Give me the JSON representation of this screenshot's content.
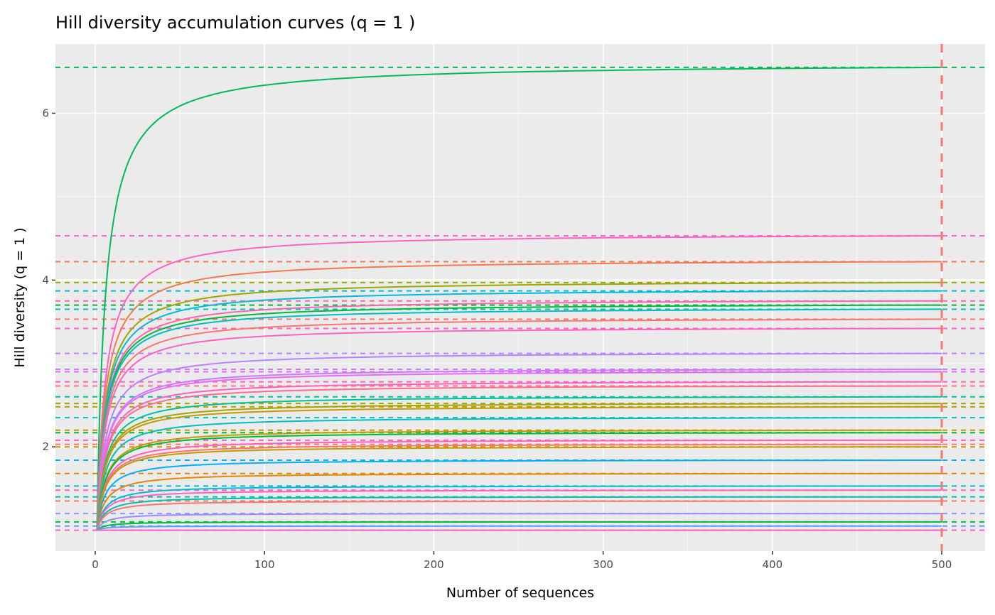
{
  "chart_data": {
    "type": "line",
    "title": "Hill diversity accumulation curves (q = 1 )",
    "xlabel": "Number of sequences",
    "ylabel": "Hill diversity (q = 1 )",
    "xlim": [
      -23.5,
      525.6
    ],
    "ylim": [
      0.75,
      6.83
    ],
    "xticks": [
      0,
      100,
      200,
      300,
      400,
      500
    ],
    "xtick_labels": [
      "0",
      "100",
      "200",
      "300",
      "400",
      "500"
    ],
    "yticks": [
      2,
      4,
      6
    ],
    "ytick_labels": [
      "2",
      "4",
      "6"
    ],
    "grid": true,
    "legend": "none",
    "curve_x_range": [
      1,
      500
    ],
    "vline": {
      "x": 500,
      "color": "#F8766D",
      "style": "dashed"
    },
    "series": [
      {
        "asymptote": 6.55,
        "color": "#00BA5A"
      },
      {
        "asymptote": 4.53,
        "color": "#FF61C3"
      },
      {
        "asymptote": 4.22,
        "color": "#F5794F"
      },
      {
        "asymptote": 3.97,
        "color": "#9CA700"
      },
      {
        "asymptote": 3.87,
        "color": "#00BCD8"
      },
      {
        "asymptote": 3.75,
        "color": "#FF64B0"
      },
      {
        "asymptote": 3.7,
        "color": "#00BA38"
      },
      {
        "asymptote": 3.65,
        "color": "#00BFC4"
      },
      {
        "asymptote": 3.53,
        "color": "#F8766D"
      },
      {
        "asymptote": 3.42,
        "color": "#FF61C3"
      },
      {
        "asymptote": 3.12,
        "color": "#B983FF"
      },
      {
        "asymptote": 2.93,
        "color": "#C77CFF"
      },
      {
        "asymptote": 2.9,
        "color": "#E76BF3"
      },
      {
        "asymptote": 2.78,
        "color": "#FF62BC"
      },
      {
        "asymptote": 2.73,
        "color": "#FF6C91"
      },
      {
        "asymptote": 2.6,
        "color": "#00C19A"
      },
      {
        "asymptote": 2.52,
        "color": "#A3A500"
      },
      {
        "asymptote": 2.48,
        "color": "#C49A00"
      },
      {
        "asymptote": 2.35,
        "color": "#00BFC4"
      },
      {
        "asymptote": 2.2,
        "color": "#C49A00"
      },
      {
        "asymptote": 2.17,
        "color": "#00BA38"
      },
      {
        "asymptote": 2.08,
        "color": "#FF61C3"
      },
      {
        "asymptote": 2.03,
        "color": "#F8766D"
      },
      {
        "asymptote": 2.0,
        "color": "#C49A00"
      },
      {
        "asymptote": 1.84,
        "color": "#00B0F6"
      },
      {
        "asymptote": 1.68,
        "color": "#E58700"
      },
      {
        "asymptote": 1.53,
        "color": "#00BCD8"
      },
      {
        "asymptote": 1.48,
        "color": "#FF61C3"
      },
      {
        "asymptote": 1.4,
        "color": "#00C0AF"
      },
      {
        "asymptote": 1.35,
        "color": "#F8766D"
      },
      {
        "asymptote": 1.2,
        "color": "#9590FF"
      },
      {
        "asymptote": 1.1,
        "color": "#00BA38"
      },
      {
        "asymptote": 1.05,
        "color": "#619CFF"
      },
      {
        "asymptote": 1.0,
        "color": "#FF61C3"
      }
    ]
  }
}
